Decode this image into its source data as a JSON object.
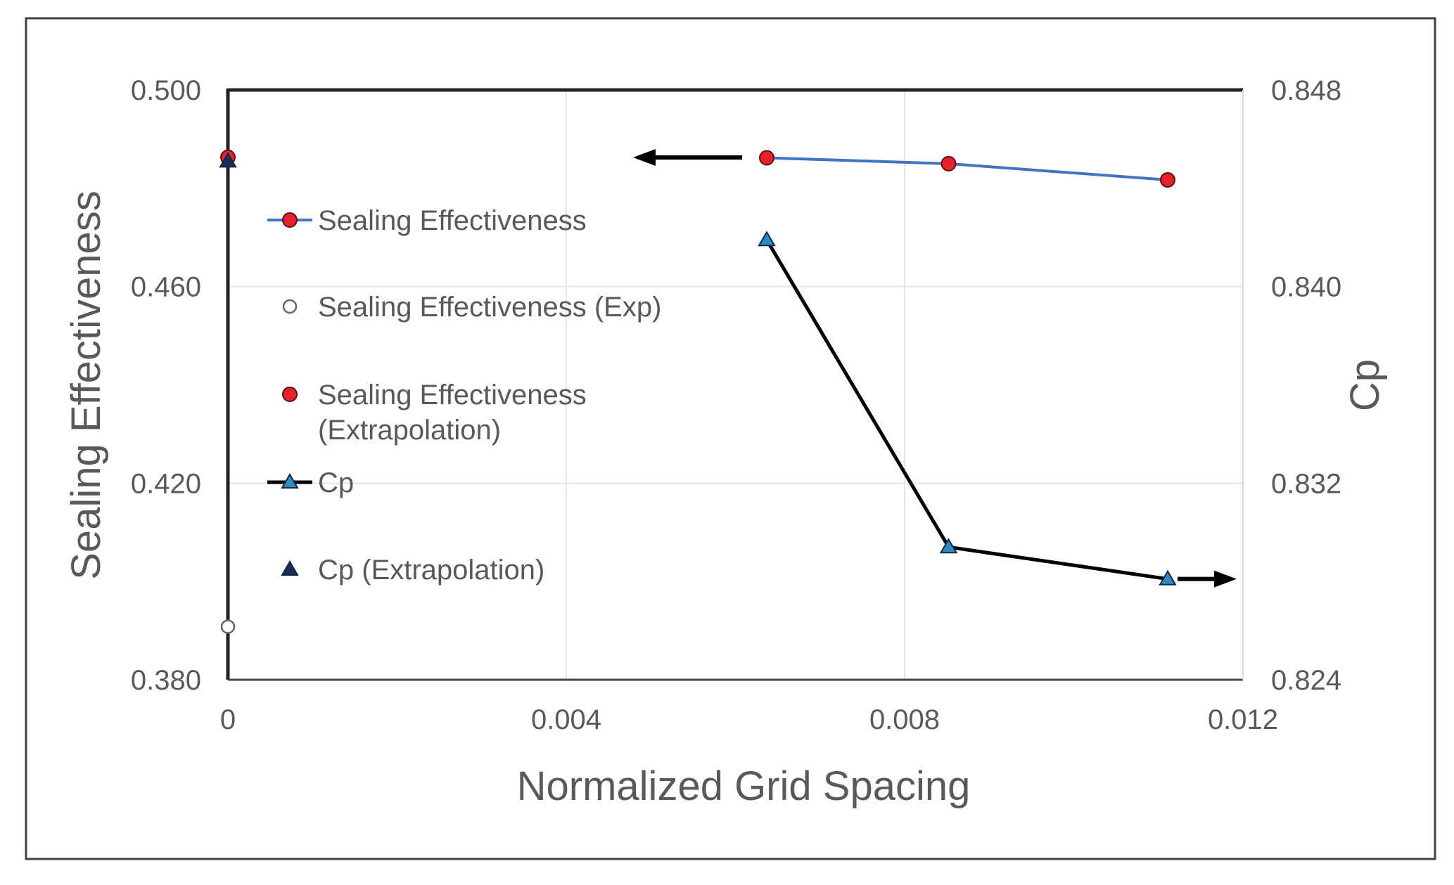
{
  "chart_data": {
    "type": "line",
    "title": "",
    "xlabel": "Normalized Grid Spacing",
    "ylabel_left": "Sealing Effectiveness",
    "ylabel_right": "Cp",
    "xlim": [
      0,
      0.012
    ],
    "ylim_left": [
      0.38,
      0.5
    ],
    "ylim_right": [
      0.824,
      0.848
    ],
    "x_ticks": [
      {
        "value": 0,
        "label": "0"
      },
      {
        "value": 0.004,
        "label": "0.004"
      },
      {
        "value": 0.008,
        "label": "0.008"
      },
      {
        "value": 0.012,
        "label": "0.012"
      }
    ],
    "y_left_ticks": [
      {
        "value": 0.38,
        "label": "0.380"
      },
      {
        "value": 0.42,
        "label": "0.420"
      },
      {
        "value": 0.46,
        "label": "0.460"
      },
      {
        "value": 0.5,
        "label": "0.500"
      }
    ],
    "y_right_ticks": [
      {
        "value": 0.824,
        "label": "0.824"
      },
      {
        "value": 0.832,
        "label": "0.832"
      },
      {
        "value": 0.84,
        "label": "0.840"
      },
      {
        "value": 0.848,
        "label": "0.848"
      }
    ],
    "grid": true,
    "series": [
      {
        "id": "se",
        "name": "Sealing Effectiveness",
        "axis": "left",
        "marker": "circle",
        "line": true,
        "x": [
          0.00637,
          0.00852,
          0.01111
        ],
        "y": [
          0.4862,
          0.485,
          0.4817
        ]
      },
      {
        "id": "se_exp",
        "name": "Sealing Effectiveness (Exp)",
        "axis": "left",
        "marker": "open-circle",
        "line": false,
        "x": [
          0
        ],
        "y": [
          0.3908
        ]
      },
      {
        "id": "se_extrap",
        "name": "Sealing Effectiveness (Extrapolation)",
        "axis": "left",
        "marker": "circle",
        "line": false,
        "x": [
          0
        ],
        "y": [
          0.4863
        ]
      },
      {
        "id": "cp",
        "name": "Cp",
        "axis": "right",
        "marker": "triangle",
        "line": true,
        "x": [
          0.00637,
          0.00852,
          0.01111
        ],
        "y": [
          0.8419,
          0.8294,
          0.8281
        ]
      },
      {
        "id": "cp_extrap",
        "name": "Cp (Extrapolation)",
        "axis": "right",
        "marker": "triangle-dark",
        "line": false,
        "x": [
          0
        ],
        "y": [
          0.8451
        ]
      }
    ],
    "legend": [
      {
        "series": "se",
        "lines": [
          "Sealing Effectiveness"
        ]
      },
      {
        "series": "se_exp",
        "lines": [
          "Sealing Effectiveness (Exp)"
        ]
      },
      {
        "series": "se_extrap",
        "lines": [
          "Sealing Effectiveness",
          "(Extrapolation)"
        ]
      },
      {
        "series": "cp",
        "lines": [
          "Cp"
        ]
      },
      {
        "series": "cp_extrap",
        "lines": [
          "Cp (Extrapolation)"
        ]
      }
    ],
    "legend_position": "left",
    "annotations": [
      {
        "type": "arrow",
        "direction": "left",
        "meaning": "Sealing Effectiveness uses left axis"
      },
      {
        "type": "arrow",
        "direction": "right",
        "meaning": "Cp uses right axis"
      }
    ]
  },
  "colors": {
    "se_line": "#4472C4",
    "se_marker_fill": "#E8202A",
    "cp_line": "#000000",
    "cp_marker_fill": "#2E8BC0",
    "cp_extrap_fill": "#1F2A5A",
    "axis_text": "#595959",
    "frame": "#404040"
  }
}
